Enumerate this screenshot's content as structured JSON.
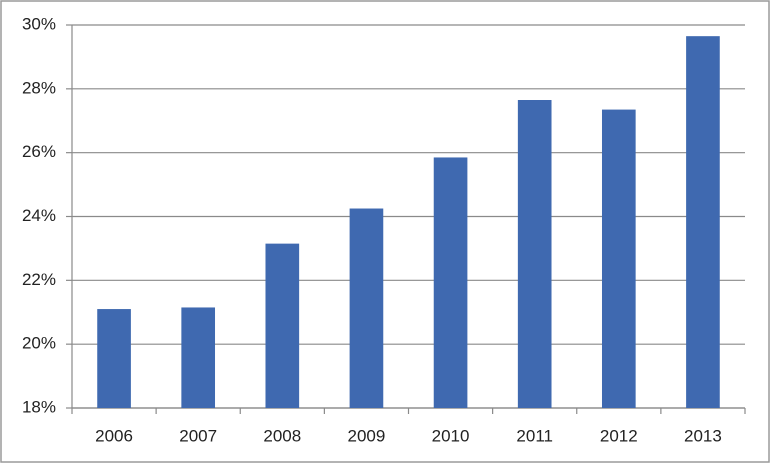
{
  "chart_data": {
    "type": "bar",
    "categories": [
      "2006",
      "2007",
      "2008",
      "2009",
      "2010",
      "2011",
      "2012",
      "2013"
    ],
    "values": [
      21.1,
      21.15,
      23.15,
      24.25,
      25.85,
      27.65,
      27.35,
      29.65
    ],
    "color": "#3f69b0",
    "ylim": [
      18,
      30
    ],
    "yticks": [
      {
        "value": 18,
        "label": "18%"
      },
      {
        "value": 20,
        "label": "20%"
      },
      {
        "value": 22,
        "label": "22%"
      },
      {
        "value": 24,
        "label": "24%"
      },
      {
        "value": 26,
        "label": "26%"
      },
      {
        "value": 28,
        "label": "28%"
      },
      {
        "value": 30,
        "label": "30%"
      }
    ],
    "grid": true
  }
}
